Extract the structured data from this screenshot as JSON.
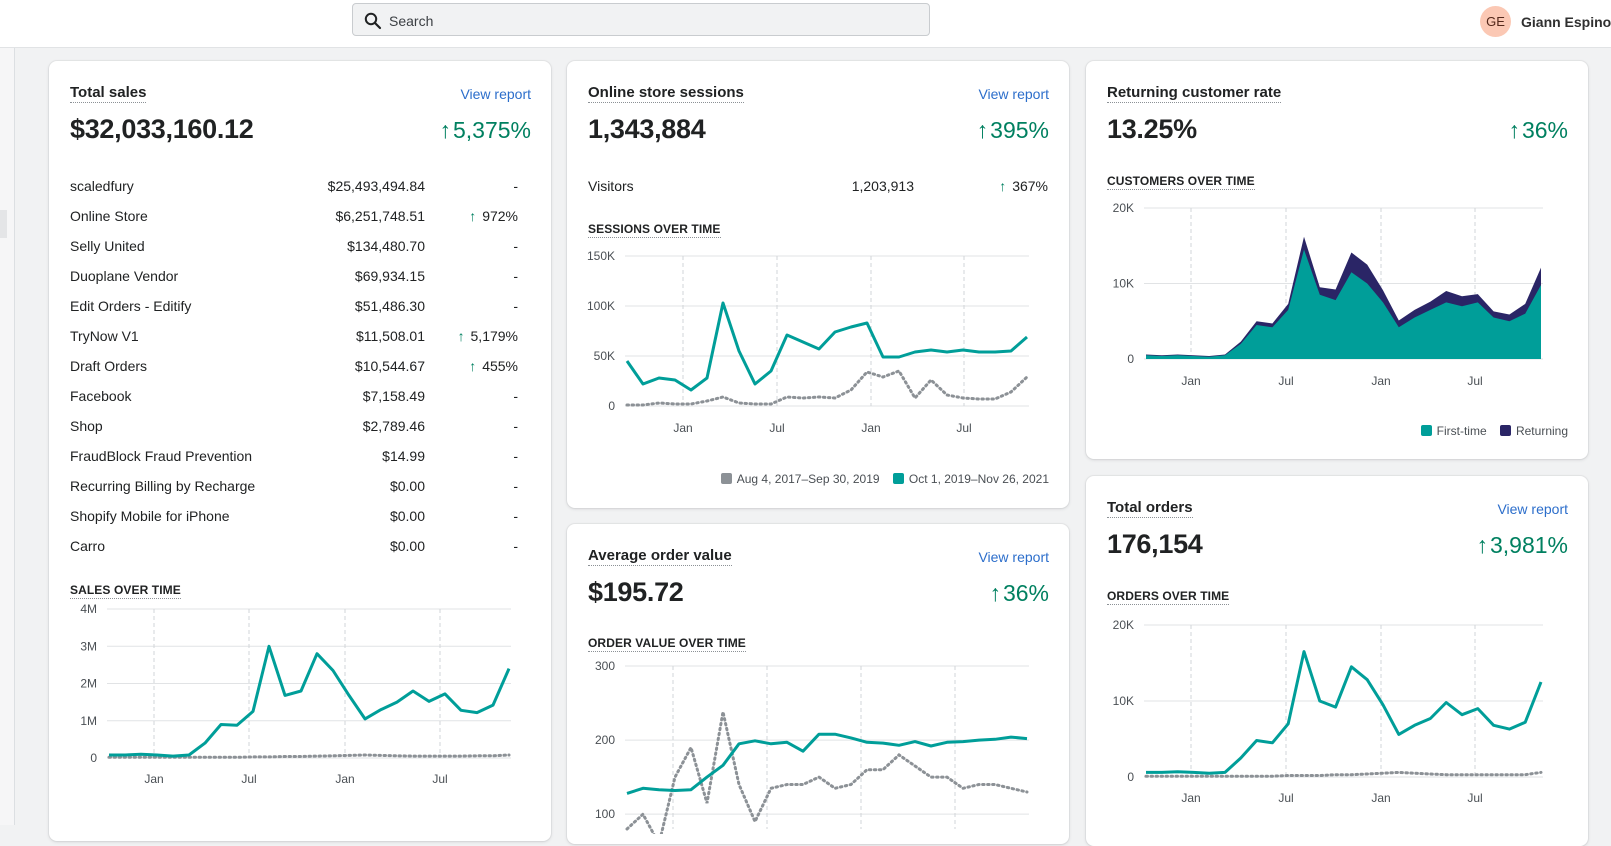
{
  "header": {
    "search_placeholder": "Search",
    "user_initials": "GE",
    "user_name": "Giann Espino"
  },
  "colors": {
    "accent": "#009e99",
    "returning": "#2a2566",
    "previous": "#8c9196",
    "positive": "#008060",
    "link": "#2c6ecb"
  },
  "total_sales": {
    "title": "Total sales",
    "view_report": "View report",
    "value": "$32,033,160.12",
    "change": "5,375%",
    "rows": [
      {
        "name": "scaledfury",
        "amount": "$25,493,494.84",
        "change": "-",
        "up": false
      },
      {
        "name": "Online Store",
        "amount": "$6,251,748.51",
        "change": "972%",
        "up": true
      },
      {
        "name": "Selly United",
        "amount": "$134,480.70",
        "change": "-",
        "up": false
      },
      {
        "name": "Duoplane Vendor",
        "amount": "$69,934.15",
        "change": "-",
        "up": false
      },
      {
        "name": "Edit Orders - Editify",
        "amount": "$51,486.30",
        "change": "-",
        "up": false
      },
      {
        "name": "TryNow V1",
        "amount": "$11,508.01",
        "change": "5,179%",
        "up": true
      },
      {
        "name": "Draft Orders",
        "amount": "$10,544.67",
        "change": "455%",
        "up": true
      },
      {
        "name": "Facebook",
        "amount": "$7,158.49",
        "change": "-",
        "up": false
      },
      {
        "name": "Shop",
        "amount": "$2,789.46",
        "change": "-",
        "up": false
      },
      {
        "name": "FraudBlock Fraud Prevention",
        "amount": "$14.99",
        "change": "-",
        "up": false
      },
      {
        "name": "Recurring Billing by Recharge",
        "amount": "$0.00",
        "change": "-",
        "up": false
      },
      {
        "name": "Shopify Mobile for iPhone",
        "amount": "$0.00",
        "change": "-",
        "up": false
      },
      {
        "name": "Carro",
        "amount": "$0.00",
        "change": "-",
        "up": false
      }
    ],
    "chart_title": "SALES OVER TIME"
  },
  "sessions": {
    "title": "Online store sessions",
    "view_report": "View report",
    "value": "1,343,884",
    "change": "395%",
    "visitors": {
      "label": "Visitors",
      "value": "1,203,913",
      "change": "367%"
    },
    "chart_title": "SESSIONS OVER TIME",
    "legend": [
      "Aug 4, 2017–Sep 30, 2019",
      "Oct 1, 2019–Nov 26, 2021"
    ]
  },
  "aov": {
    "title": "Average order value",
    "view_report": "View report",
    "value": "$195.72",
    "change": "36%",
    "chart_title": "ORDER VALUE OVER TIME"
  },
  "returning": {
    "title": "Returning customer rate",
    "value": "13.25%",
    "change": "36%",
    "chart_title": "CUSTOMERS OVER TIME",
    "legend": [
      "First-time",
      "Returning"
    ]
  },
  "orders": {
    "title": "Total orders",
    "view_report": "View report",
    "value": "176,154",
    "change": "3,981%",
    "chart_title": "ORDERS OVER TIME"
  },
  "chart_data": [
    {
      "id": "sales",
      "type": "line",
      "title": "SALES OVER TIME",
      "x_tick_labels": [
        "Jan",
        "Jul",
        "Jan",
        "Jul"
      ],
      "y_ticks": [
        0,
        1000000,
        2000000,
        3000000,
        4000000
      ],
      "y_tick_labels": [
        "0",
        "1M",
        "2M",
        "3M",
        "4M"
      ],
      "ylim": [
        0,
        4000000
      ],
      "grid": true,
      "series": [
        {
          "values": [
            0.08,
            0.08,
            0.1,
            0.08,
            0.05,
            0.08,
            0.4,
            0.9,
            0.88,
            1.25,
            3.0,
            1.68,
            1.8,
            2.8,
            2.35,
            1.68,
            1.05,
            1.3,
            1.5,
            1.8,
            1.52,
            1.72,
            1.28,
            1.22,
            1.42,
            2.4
          ],
          "scale": 1000000,
          "style": "current"
        },
        {
          "values": [
            0.02,
            0.02,
            0.02,
            0.02,
            0.02,
            0.02,
            0.02,
            0.02,
            0.02,
            0.03,
            0.03,
            0.04,
            0.04,
            0.05,
            0.06,
            0.07,
            0.08,
            0.07,
            0.06,
            0.05,
            0.05,
            0.05,
            0.05,
            0.06,
            0.06,
            0.08
          ],
          "scale": 1000000,
          "style": "previous"
        }
      ]
    },
    {
      "id": "sessions",
      "type": "line",
      "title": "SESSIONS OVER TIME",
      "x_tick_labels": [
        "Jan",
        "Jul",
        "Jan",
        "Jul"
      ],
      "y_ticks": [
        0,
        50000,
        100000,
        150000
      ],
      "y_tick_labels": [
        "0",
        "50K",
        "100K",
        "150K"
      ],
      "ylim": [
        0,
        150000
      ],
      "grid": true,
      "series": [
        {
          "name": "Oct 1, 2019–Nov 26, 2021",
          "values": [
            45,
            22,
            28,
            26,
            16,
            28,
            103,
            55,
            22,
            35,
            71,
            64,
            57,
            74,
            79,
            83,
            49,
            49,
            54,
            56,
            54,
            56,
            54,
            54,
            55,
            69
          ],
          "scale": 1000,
          "style": "current"
        },
        {
          "name": "Aug 4, 2017–Sep 30, 2019",
          "values": [
            1,
            1,
            3,
            2,
            2,
            5,
            9,
            3,
            2,
            2,
            9,
            8,
            9,
            8,
            16,
            34,
            29,
            35,
            8,
            26,
            11,
            8,
            7,
            7,
            14,
            29
          ],
          "scale": 1000,
          "style": "previous"
        }
      ]
    },
    {
      "id": "aov",
      "type": "line",
      "title": "ORDER VALUE OVER TIME",
      "y_ticks": [
        100,
        200,
        300
      ],
      "y_tick_labels": [
        "100",
        "200",
        "300"
      ],
      "ylim": [
        80,
        300
      ],
      "grid": true,
      "series": [
        {
          "values": [
            128,
            135,
            133,
            132,
            133,
            150,
            166,
            195,
            199,
            195,
            197,
            185,
            208,
            208,
            203,
            197,
            196,
            193,
            198,
            192,
            197,
            198,
            200,
            201,
            204,
            202
          ],
          "style": "current"
        },
        {
          "values": [
            80,
            100,
            60,
            150,
            190,
            115,
            238,
            140,
            90,
            135,
            140,
            140,
            150,
            135,
            140,
            160,
            160,
            180,
            165,
            150,
            150,
            135,
            140,
            140,
            135,
            130
          ],
          "style": "previous"
        }
      ]
    },
    {
      "id": "customers",
      "type": "area",
      "title": "CUSTOMERS OVER TIME",
      "x_tick_labels": [
        "Jan",
        "Jul",
        "Jan",
        "Jul"
      ],
      "y_ticks": [
        0,
        10000,
        20000
      ],
      "y_tick_labels": [
        "0",
        "10K",
        "20K"
      ],
      "ylim": [
        0,
        20000
      ],
      "grid": true,
      "legend": "bottom-right",
      "series": [
        {
          "name": "First-time",
          "values": [
            0.5,
            0.4,
            0.5,
            0.4,
            0.3,
            0.5,
            2.0,
            4.5,
            4.2,
            6.5,
            14.5,
            8.5,
            7.8,
            11.5,
            10.0,
            7.5,
            4.2,
            5.5,
            6.5,
            7.5,
            7.0,
            7.5,
            5.5,
            5.0,
            6.0,
            9.8
          ],
          "scale": 1000
        },
        {
          "name": "Returning",
          "values": [
            0.1,
            0.1,
            0.1,
            0.1,
            0.1,
            0.1,
            0.3,
            0.5,
            0.5,
            0.8,
            1.7,
            1.0,
            1.4,
            2.6,
            2.5,
            1.6,
            0.9,
            1.0,
            1.1,
            1.5,
            1.3,
            1.1,
            0.8,
            0.9,
            1.3,
            2.3
          ],
          "scale": 1000
        }
      ]
    },
    {
      "id": "orders",
      "type": "line",
      "title": "ORDERS OVER TIME",
      "x_tick_labels": [
        "Jan",
        "Jul",
        "Jan",
        "Jul"
      ],
      "y_ticks": [
        0,
        10000,
        20000
      ],
      "y_tick_labels": [
        "0",
        "10K",
        "20K"
      ],
      "ylim": [
        0,
        20000
      ],
      "grid": true,
      "series": [
        {
          "values": [
            0.6,
            0.6,
            0.7,
            0.6,
            0.5,
            0.6,
            2.5,
            4.8,
            4.5,
            7.0,
            16.5,
            10.0,
            9.2,
            14.5,
            12.8,
            9.5,
            5.6,
            6.8,
            7.7,
            9.8,
            8.2,
            9.0,
            6.8,
            6.3,
            7.2,
            12.5
          ],
          "scale": 1000,
          "style": "current"
        },
        {
          "values": [
            0.1,
            0.1,
            0.1,
            0.1,
            0.1,
            0.1,
            0.1,
            0.1,
            0.1,
            0.2,
            0.2,
            0.2,
            0.3,
            0.3,
            0.4,
            0.5,
            0.6,
            0.5,
            0.4,
            0.3,
            0.3,
            0.3,
            0.3,
            0.3,
            0.3,
            0.6
          ],
          "scale": 1000,
          "style": "previous"
        }
      ]
    }
  ]
}
